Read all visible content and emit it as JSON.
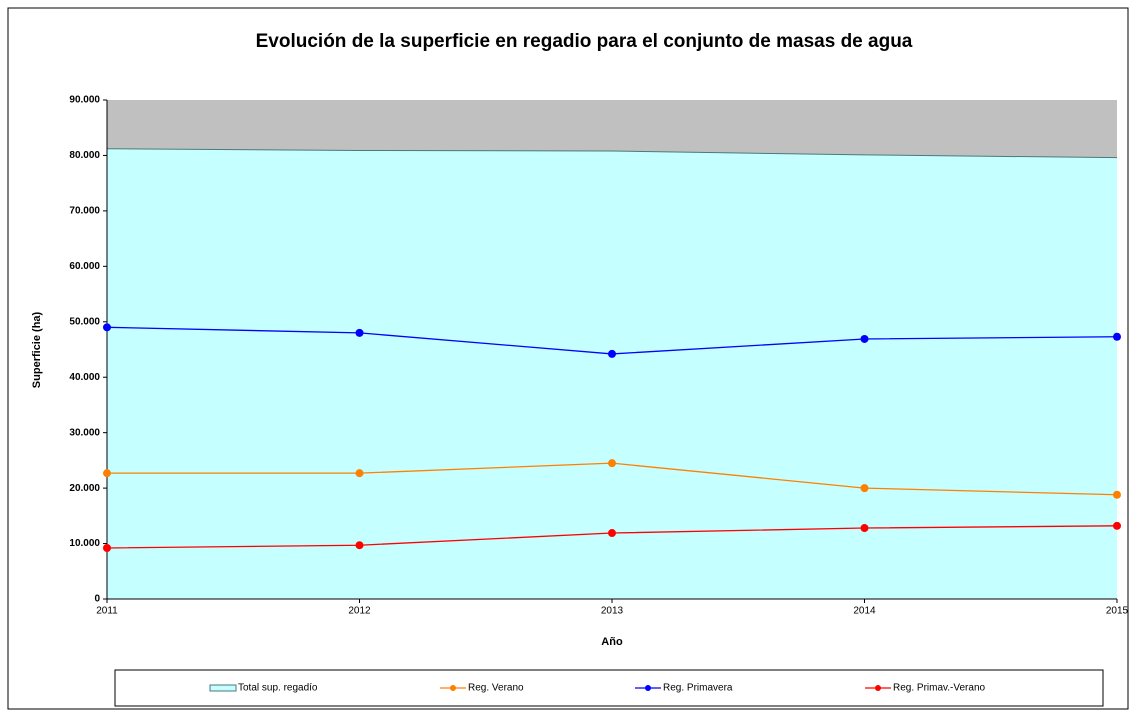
{
  "chart_data": {
    "type": "line",
    "title": "Evolución de la superficie en regadio para el conjunto de masas de agua",
    "x_label": "Año",
    "y_label": "Superficie (ha)",
    "categories": [
      "2011",
      "2012",
      "2013",
      "2014",
      "2015"
    ],
    "series": [
      {
        "name": "Total sup. regadío",
        "type": "area",
        "color": "#c6ffff",
        "edge": "#4a7a7a",
        "values": [
          81200,
          80900,
          80800,
          80100,
          79600
        ]
      },
      {
        "name": "Reg. Verano",
        "type": "line",
        "color": "#ff8000",
        "values": [
          22700,
          22700,
          24500,
          20000,
          18800
        ]
      },
      {
        "name": "Reg. Primavera",
        "type": "line",
        "color": "#0000ff",
        "values": [
          49000,
          48000,
          44200,
          46900,
          47300
        ]
      },
      {
        "name": "Reg. Primav.-Verano",
        "type": "line",
        "color": "#ff0000",
        "values": [
          9200,
          9700,
          11900,
          12800,
          13200
        ]
      }
    ],
    "ylim": [
      0,
      90000
    ],
    "yticks": [
      0,
      {
        "value": 10000,
        "label": "10.000"
      },
      {
        "value": 20000,
        "label": "20.000"
      },
      {
        "value": 30000,
        "label": "30.000"
      },
      {
        "value": 40000,
        "label": "40.000"
      },
      {
        "value": 50000,
        "label": "50.000"
      },
      {
        "value": 60000,
        "label": "60.000"
      },
      {
        "value": 70000,
        "label": "70.000"
      },
      {
        "value": 80000,
        "label": "80.000"
      },
      {
        "value": 90000,
        "label": "90.000"
      }
    ],
    "plot_background": "#c0c0c0",
    "legend": "bottom"
  }
}
